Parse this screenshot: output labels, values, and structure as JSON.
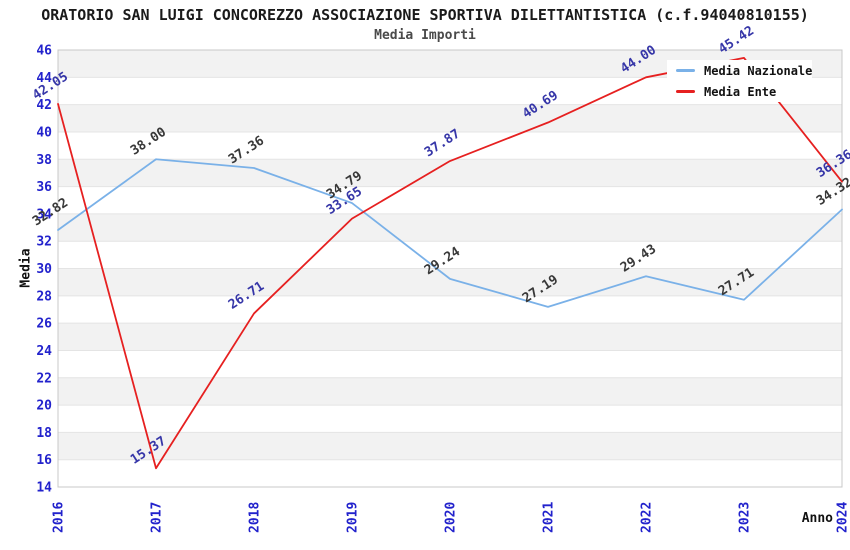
{
  "title": "ORATORIO SAN LUIGI CONCOREZZO ASSOCIAZIONE SPORTIVA DILETTANTISTICA (c.f.94040810155)",
  "subtitle": "Media Importi",
  "axes": {
    "x_title": "Anno",
    "y_title": "Media"
  },
  "legend": {
    "position": "top-right",
    "items": [
      {
        "label": "Media Nazionale",
        "color": "#7ab1e8"
      },
      {
        "label": "Media Ente",
        "color": "#e62020"
      }
    ]
  },
  "chart_data": {
    "type": "line",
    "title": "Media Importi",
    "xlabel": "Anno",
    "ylabel": "Media",
    "x": [
      2016,
      2017,
      2018,
      2019,
      2020,
      2021,
      2022,
      2023,
      2024
    ],
    "series": [
      {
        "name": "Media Nazionale",
        "color": "#7ab1e8",
        "label_color": "#383838",
        "values": [
          32.82,
          38.0,
          37.36,
          34.79,
          29.24,
          27.19,
          29.43,
          27.71,
          34.32
        ]
      },
      {
        "name": "Media Ente",
        "color": "#e62020",
        "label_color": "#3636a8",
        "values": [
          42.05,
          15.37,
          26.71,
          33.65,
          37.87,
          40.69,
          44.0,
          45.42,
          36.36
        ]
      }
    ],
    "ylim": [
      14,
      46
    ],
    "ytick_step": 2,
    "grid": true,
    "legend_position": "top-right",
    "styles": {
      "tick_label_color": "#2222cc",
      "band_color": "#f2f2f2",
      "gridline_color": "#e4e4e4",
      "border_color": "#c8c8c8",
      "data_label_rotation_deg": -33,
      "x_tick_rotation_deg": -90,
      "line_width": 1.8
    }
  }
}
